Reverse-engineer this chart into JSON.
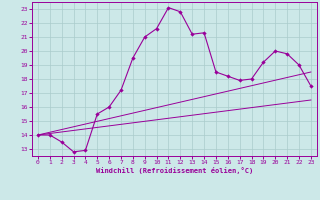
{
  "title": "",
  "xlabel": "Windchill (Refroidissement éolien,°C)",
  "bg_color": "#cce8e8",
  "line_color": "#990099",
  "grid_color": "#aacccc",
  "xlim": [
    -0.5,
    23.5
  ],
  "ylim": [
    12.5,
    23.5
  ],
  "yticks": [
    13,
    14,
    15,
    16,
    17,
    18,
    19,
    20,
    21,
    22,
    23
  ],
  "xticks": [
    0,
    1,
    2,
    3,
    4,
    5,
    6,
    7,
    8,
    9,
    10,
    11,
    12,
    13,
    14,
    15,
    16,
    17,
    18,
    19,
    20,
    21,
    22,
    23
  ],
  "curve_x": [
    0,
    1,
    2,
    3,
    4,
    5,
    6,
    7,
    8,
    9,
    10,
    11,
    12,
    13,
    14,
    15,
    16,
    17,
    18,
    19,
    20,
    21,
    22,
    23
  ],
  "curve_y": [
    14,
    14,
    13.5,
    12.8,
    12.9,
    15.5,
    16.0,
    17.2,
    19.5,
    21.0,
    21.6,
    23.1,
    22.8,
    21.2,
    21.3,
    18.5,
    18.2,
    17.9,
    18.0,
    19.2,
    20.0,
    19.8,
    19.0,
    17.5
  ],
  "line1_x": [
    0,
    23
  ],
  "line1_y": [
    14.0,
    16.5
  ],
  "line2_x": [
    0,
    23
  ],
  "line2_y": [
    14.0,
    18.5
  ]
}
